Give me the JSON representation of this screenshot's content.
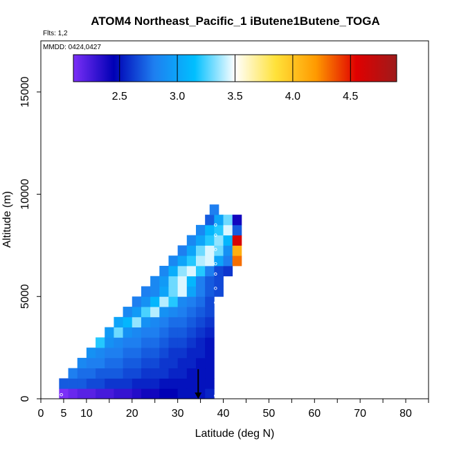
{
  "chart_data": {
    "type": "heatmap",
    "title": "ATOM4 Northeast_Pacific_1 iButene1Butene_TOGA",
    "flights_label": "Flts: 1,2",
    "dates_label": "MMDD: 0424,0427",
    "xlabel": "Latitude (deg N)",
    "ylabel": "Altitude (m)",
    "xlim": [
      0,
      85
    ],
    "ylim": [
      0,
      17500
    ],
    "x_ticks": [
      0,
      5,
      10,
      20,
      30,
      40,
      50,
      60,
      70,
      80
    ],
    "x_minor_ticks": [
      15,
      25,
      35,
      45,
      55,
      65,
      75,
      85
    ],
    "y_ticks": [
      0,
      5000,
      10000,
      15000
    ],
    "colorbar": {
      "range": [
        2.1,
        4.9
      ],
      "ticks": [
        "2.5",
        "3.0",
        "3.5",
        "4.0",
        "4.5"
      ],
      "tick_values": [
        2.5,
        3.0,
        3.5,
        4.0,
        4.5
      ],
      "colors": [
        "#7b2ff7",
        "#0000b5",
        "#1e7ff0",
        "#00bfff",
        "#ffffff",
        "#ffe23a",
        "#ff9a00",
        "#e00000",
        "#9e1b1b"
      ]
    },
    "grid": false,
    "legend": "colorbar top",
    "cell_size": {
      "lat": 2,
      "alt": 500
    },
    "rows": [
      {
        "alt": 0,
        "lat_start": 4,
        "values": [
          2.1,
          2.15,
          2.2,
          2.2,
          2.25,
          2.25,
          2.3,
          2.3,
          2.35,
          2.4,
          2.4,
          2.45,
          2.45,
          2.5,
          2.5,
          2.5,
          2.55
        ]
      },
      {
        "alt": 500,
        "lat_start": 4,
        "values": [
          2.7,
          2.7,
          2.7,
          2.65,
          2.65,
          2.6,
          2.6,
          2.6,
          2.55,
          2.55,
          2.55,
          2.5,
          2.5,
          2.5,
          2.5,
          2.5,
          2.5
        ]
      },
      {
        "alt": 1000,
        "lat_start": 6,
        "values": [
          2.8,
          2.75,
          2.75,
          2.7,
          2.7,
          2.7,
          2.65,
          2.65,
          2.6,
          2.6,
          2.6,
          2.55,
          2.55,
          2.5,
          2.5,
          2.5
        ]
      },
      {
        "alt": 1500,
        "lat_start": 8,
        "values": [
          2.85,
          2.8,
          2.8,
          2.75,
          2.75,
          2.7,
          2.7,
          2.65,
          2.65,
          2.6,
          2.6,
          2.55,
          2.55,
          2.5,
          2.5
        ]
      },
      {
        "alt": 2000,
        "lat_start": 10,
        "values": [
          2.9,
          2.85,
          2.8,
          2.8,
          2.75,
          2.75,
          2.7,
          2.7,
          2.65,
          2.6,
          2.6,
          2.55,
          2.55,
          2.5
        ]
      },
      {
        "alt": 2500,
        "lat_start": 12,
        "values": [
          3.2,
          2.9,
          2.85,
          2.8,
          2.8,
          2.75,
          2.75,
          2.7,
          2.65,
          2.65,
          2.6,
          2.55,
          2.5
        ]
      },
      {
        "alt": 3000,
        "lat_start": 14,
        "values": [
          2.95,
          3.3,
          2.9,
          2.85,
          2.8,
          2.8,
          2.75,
          2.7,
          2.7,
          2.65,
          2.6,
          2.55
        ]
      },
      {
        "alt": 3500,
        "lat_start": 16,
        "values": [
          3.0,
          3.1,
          3.35,
          2.9,
          2.85,
          2.8,
          2.75,
          2.75,
          2.7,
          2.65,
          2.6
        ]
      },
      {
        "alt": 4000,
        "lat_start": 18,
        "values": [
          2.85,
          2.95,
          3.25,
          3.4,
          2.9,
          2.85,
          2.8,
          2.75,
          2.7,
          2.65
        ]
      },
      {
        "alt": 4500,
        "lat_start": 20,
        "values": [
          2.8,
          2.9,
          3.1,
          3.4,
          3.2,
          2.85,
          2.8,
          2.75,
          2.65
        ]
      },
      {
        "alt": 5000,
        "lat_start": 22,
        "values": [
          2.8,
          2.85,
          3.0,
          3.3,
          3.45,
          3.0,
          2.8,
          2.7,
          2.65
        ]
      },
      {
        "alt": 5500,
        "lat_start": 24,
        "values": [
          2.85,
          2.95,
          3.3,
          3.45,
          3.1,
          2.8,
          2.7,
          2.65
        ]
      },
      {
        "alt": 6000,
        "lat_start": 26,
        "values": [
          2.85,
          3.05,
          3.35,
          3.45,
          3.2,
          2.8,
          2.65,
          2.6
        ]
      },
      {
        "alt": 6500,
        "lat_start": 28,
        "values": [
          2.85,
          3.0,
          3.2,
          3.4,
          3.45,
          3.0,
          2.8,
          4.3
        ]
      },
      {
        "alt": 7000,
        "lat_start": 30,
        "values": [
          2.8,
          3.0,
          3.3,
          3.45,
          3.3,
          2.9,
          4.1
        ]
      },
      {
        "alt": 7500,
        "lat_start": 32,
        "values": [
          2.85,
          3.0,
          3.2,
          3.35,
          3.1,
          4.6
        ]
      },
      {
        "alt": 8000,
        "lat_start": 34,
        "values": [
          2.85,
          3.1,
          3.2,
          3.45,
          2.7
        ]
      },
      {
        "alt": 8500,
        "lat_start": 36,
        "values": [
          2.7,
          3.0,
          3.3,
          2.4
        ]
      },
      {
        "alt": 9000,
        "lat_start": 37,
        "values": [
          2.8
        ]
      }
    ],
    "circle_markers": [
      {
        "lat": 4.5,
        "alt": 200
      },
      {
        "lat": 38.3,
        "alt": 150
      },
      {
        "lat": 38.3,
        "alt": 4700
      },
      {
        "lat": 38.3,
        "alt": 5400
      },
      {
        "lat": 38.3,
        "alt": 6100
      },
      {
        "lat": 38.3,
        "alt": 6600
      },
      {
        "lat": 38.3,
        "alt": 7300
      },
      {
        "lat": 38.3,
        "alt": 8000
      },
      {
        "lat": 38.3,
        "alt": 8500
      }
    ],
    "arrow_marker": {
      "lat": 34.5,
      "alt_top": 700,
      "alt_bottom": 0
    }
  }
}
